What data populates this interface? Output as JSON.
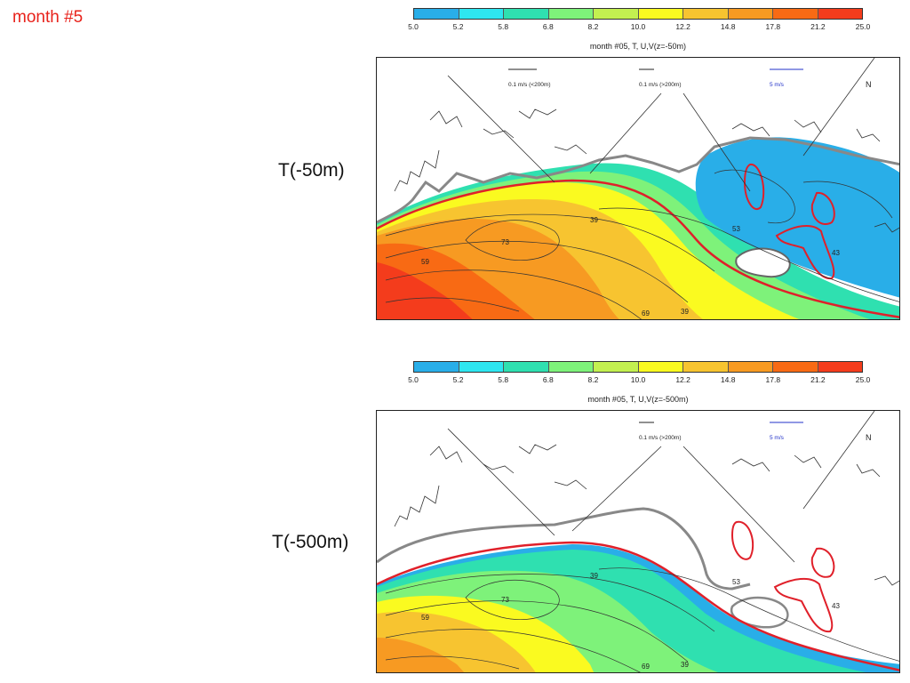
{
  "slide": {
    "title": "month #5",
    "label_top": "T(-50m)",
    "label_bottom": "T(-500m)"
  },
  "colorbar": {
    "ticks": [
      "5.0",
      "5.2",
      "5.8",
      "6.8",
      "8.2",
      "10.0",
      "12.2",
      "14.8",
      "17.8",
      "21.2",
      "25.0"
    ],
    "colors": [
      "#29aee8",
      "#2ee6f0",
      "#2fe0b0",
      "#7ef27a",
      "#c3f050",
      "#fafa20",
      "#f7c430",
      "#f79a22",
      "#f86a14",
      "#f43c1c"
    ]
  },
  "map_top": {
    "title": "month #05, T, U,V(z=-50m)",
    "legend_small": "0.1 m/s (<200m)",
    "legend_deep": "0.1 m/s (>200m)",
    "legend_fast": "5 m/s",
    "north": "N",
    "contour_labels": [
      "39",
      "73",
      "59",
      "69",
      "39",
      "43",
      "53"
    ]
  },
  "map_bottom": {
    "title": "month #05, T, U,V(z=-500m)",
    "legend_deep": "0.1 m/s (>200m)",
    "legend_fast": "5 m/s",
    "north": "N",
    "contour_labels": [
      "39",
      "73",
      "59",
      "69",
      "39",
      "43",
      "53"
    ]
  }
}
